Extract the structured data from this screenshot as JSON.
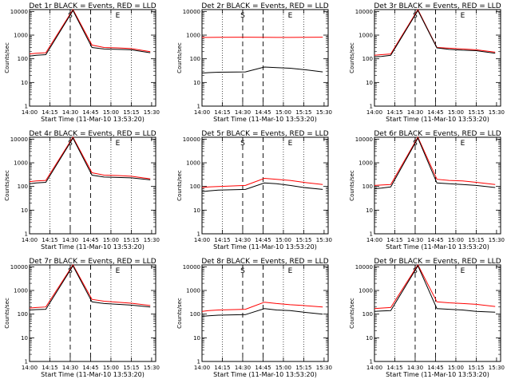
{
  "chart_data": [
    {
      "type": "line",
      "title": "Det 1r BLACK = Events, RED = LLD",
      "markers": [
        "S",
        "E"
      ],
      "series": [
        {
          "name": "Events",
          "color": "#000000",
          "values": [
            130,
            140,
            150,
            11000,
            300,
            260,
            250,
            240,
            180
          ]
        },
        {
          "name": "LLD",
          "color": "#ff0000",
          "values": [
            160,
            170,
            180,
            12000,
            380,
            300,
            290,
            270,
            200
          ]
        }
      ]
    },
    {
      "type": "line",
      "title": "Det 2r BLACK = Events, RED = LLD",
      "markers": [
        "S",
        "E"
      ],
      "series": [
        {
          "name": "Events",
          "color": "#000000",
          "values": [
            25,
            26,
            27,
            28,
            45,
            42,
            40,
            35,
            28
          ]
        },
        {
          "name": "LLD",
          "color": "#ff0000",
          "values": [
            800,
            800,
            810,
            820,
            810,
            800,
            800,
            810,
            820
          ]
        }
      ]
    },
    {
      "type": "line",
      "title": "Det 3r BLACK = Events, RED = LLD",
      "markers": [
        "S",
        "E"
      ],
      "series": [
        {
          "name": "Events",
          "color": "#000000",
          "values": [
            120,
            125,
            140,
            11000,
            290,
            250,
            230,
            220,
            170
          ]
        },
        {
          "name": "LLD",
          "color": "#ff0000",
          "values": [
            140,
            150,
            160,
            12000,
            300,
            280,
            260,
            240,
            190
          ]
        }
      ]
    },
    {
      "type": "line",
      "title": "Det 4r BLACK = Events, RED = LLD",
      "markers": [
        "S",
        "E"
      ],
      "series": [
        {
          "name": "Events",
          "color": "#000000",
          "values": [
            130,
            140,
            150,
            11000,
            300,
            250,
            240,
            230,
            190
          ]
        },
        {
          "name": "LLD",
          "color": "#ff0000",
          "values": [
            160,
            170,
            180,
            12000,
            380,
            300,
            290,
            270,
            210
          ]
        }
      ]
    },
    {
      "type": "line",
      "title": "Det 5r BLACK = Events, RED = LLD",
      "markers": [
        "S",
        "E"
      ],
      "series": [
        {
          "name": "Events",
          "color": "#000000",
          "values": [
            60,
            65,
            70,
            75,
            140,
            130,
            110,
            90,
            75
          ]
        },
        {
          "name": "LLD",
          "color": "#ff0000",
          "values": [
            90,
            95,
            100,
            110,
            220,
            200,
            180,
            150,
            120
          ]
        }
      ]
    },
    {
      "type": "line",
      "title": "Det 6r BLACK = Events, RED = LLD",
      "markers": [
        "S",
        "E"
      ],
      "series": [
        {
          "name": "Events",
          "color": "#000000",
          "values": [
            80,
            85,
            95,
            11000,
            140,
            130,
            120,
            110,
            90
          ]
        },
        {
          "name": "LLD",
          "color": "#ff0000",
          "values": [
            110,
            115,
            120,
            12000,
            200,
            180,
            170,
            150,
            120
          ]
        }
      ]
    },
    {
      "type": "line",
      "title": "Det 7r BLACK = Events, RED = LLD",
      "markers": [
        "S",
        "E"
      ],
      "series": [
        {
          "name": "Events",
          "color": "#000000",
          "values": [
            150,
            155,
            160,
            11000,
            330,
            280,
            260,
            240,
            200
          ]
        },
        {
          "name": "LLD",
          "color": "#ff0000",
          "values": [
            180,
            190,
            200,
            12000,
            420,
            350,
            320,
            290,
            230
          ]
        }
      ]
    },
    {
      "type": "line",
      "title": "Det 8r BLACK = Events, RED = LLD",
      "markers": [
        "S",
        "E"
      ],
      "series": [
        {
          "name": "Events",
          "color": "#000000",
          "values": [
            80,
            85,
            90,
            95,
            170,
            150,
            140,
            120,
            100
          ]
        },
        {
          "name": "LLD",
          "color": "#ff0000",
          "values": [
            130,
            140,
            150,
            160,
            320,
            280,
            250,
            230,
            200
          ]
        }
      ]
    },
    {
      "type": "line",
      "title": "Det 9r BLACK = Events, RED = LLD",
      "markers": [
        "S",
        "E"
      ],
      "series": [
        {
          "name": "Events",
          "color": "#000000",
          "values": [
            130,
            135,
            140,
            11000,
            170,
            160,
            150,
            130,
            120
          ]
        },
        {
          "name": "LLD",
          "color": "#ff0000",
          "values": [
            170,
            180,
            190,
            12000,
            330,
            300,
            280,
            260,
            210
          ]
        }
      ]
    }
  ],
  "shared": {
    "x": [
      "14:00",
      "14:05",
      "14:12",
      "14:32",
      "14:46",
      "14:55",
      "15:05",
      "15:15",
      "15:29"
    ],
    "x_ticks": [
      "14:00",
      "14:15",
      "14:30",
      "14:45",
      "15:00",
      "15:15",
      "15:30"
    ],
    "y_ticks": [
      "1",
      "10",
      "100",
      "1000",
      "10000"
    ],
    "ylim": [
      1,
      12000
    ],
    "yscale": "log",
    "xlabel": "Start Time (11-Mar-10 13:53:20)",
    "ylabel": "Counts/sec"
  }
}
